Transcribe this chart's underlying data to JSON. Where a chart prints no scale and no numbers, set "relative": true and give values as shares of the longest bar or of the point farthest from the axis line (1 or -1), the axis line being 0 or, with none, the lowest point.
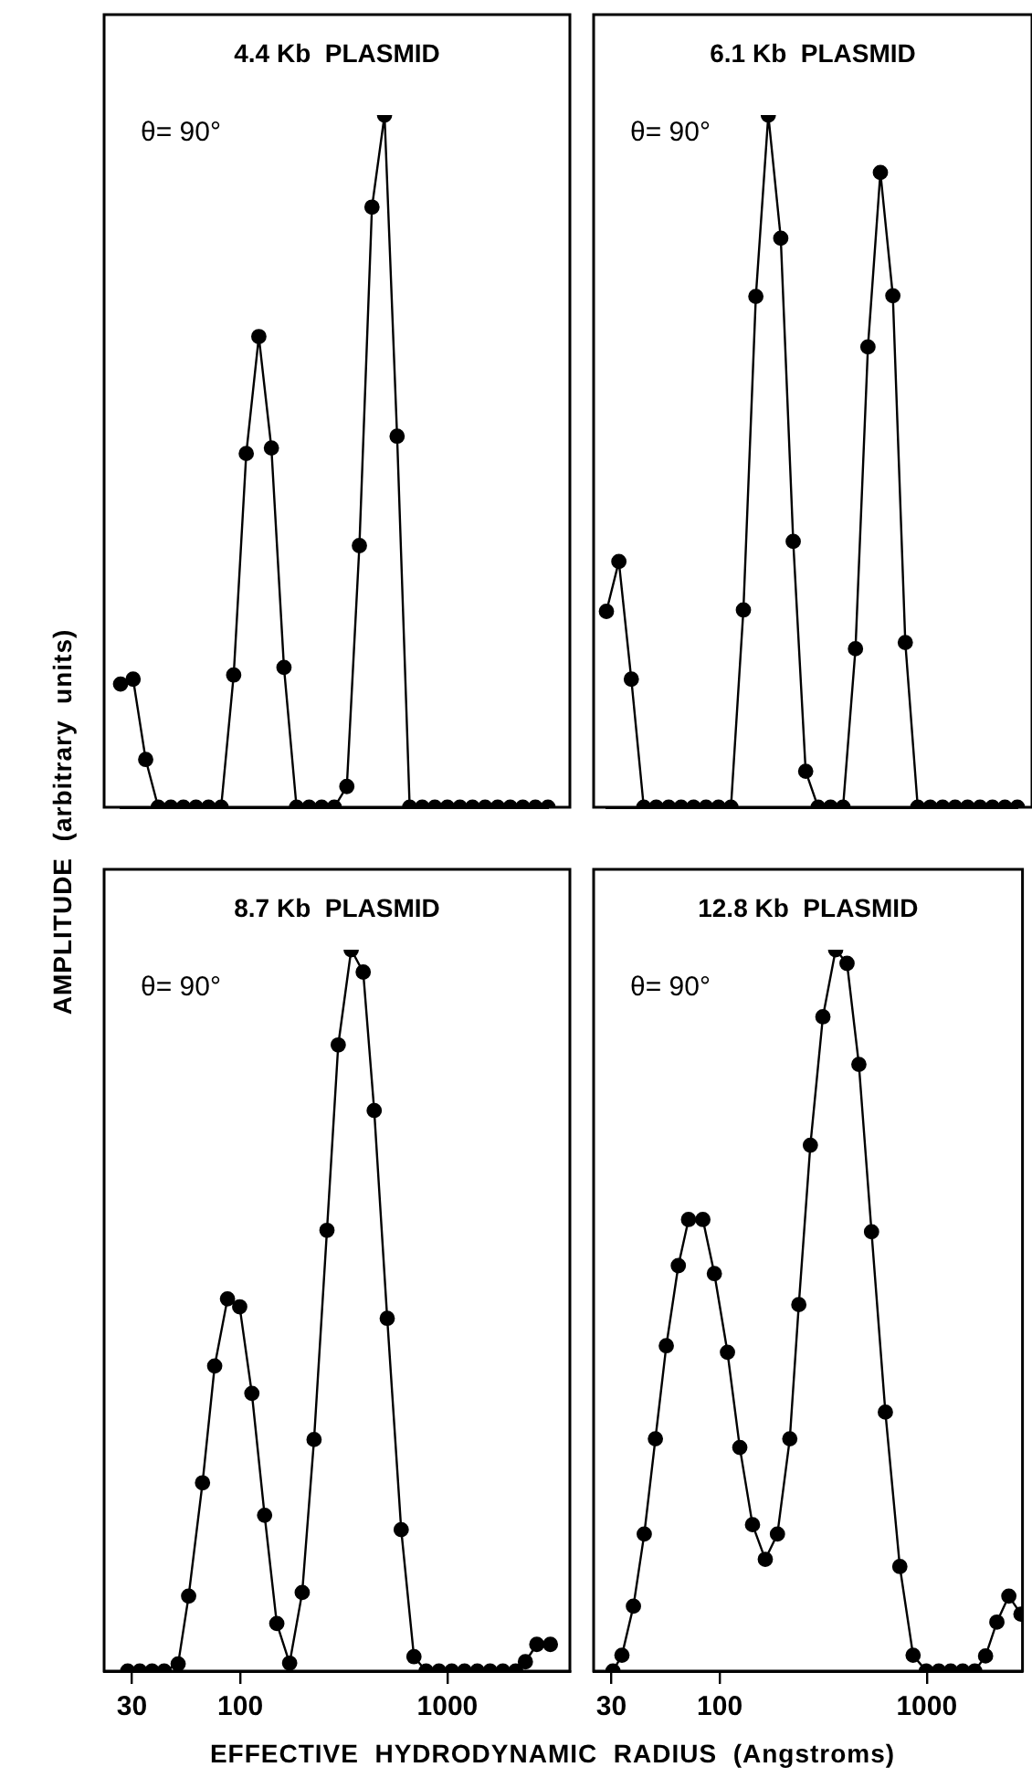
{
  "chart_data": [
    {
      "type": "line",
      "title": "4.4 Kb  PLASMID",
      "ylabel": "AMPLITUDE  (arbitrary  units)",
      "annotations": [
        "θ= 90°"
      ],
      "relative": true,
      "categories": [
        null,
        null,
        null,
        null,
        null,
        null,
        null,
        null,
        null,
        null,
        null,
        null,
        null,
        null,
        null,
        null,
        null,
        null,
        null,
        null,
        null,
        null,
        null,
        null,
        null,
        null,
        null,
        null,
        null,
        null,
        null,
        null,
        null,
        null,
        null
      ],
      "tick_labels": false,
      "marker": "circle",
      "line_style": "solid",
      "legend": false,
      "grid": false,
      "series": [
        {
          "color": "#000000",
          "values": [
            0.178,
            0.185,
            0.069,
            0,
            0,
            0,
            0,
            0,
            0,
            0.191,
            0.511,
            0.68,
            0.519,
            0.202,
            0,
            0,
            0,
            0,
            0.03,
            0.378,
            0.867,
            1,
            0.536,
            0,
            0,
            0,
            0,
            0,
            0,
            0,
            0,
            0,
            0,
            0,
            0
          ]
        }
      ]
    },
    {
      "type": "line",
      "title": "6.1 Kb  PLASMID",
      "annotations": [
        "θ= 90°"
      ],
      "relative": true,
      "categories": [
        null,
        null,
        null,
        null,
        null,
        null,
        null,
        null,
        null,
        null,
        null,
        null,
        null,
        null,
        null,
        null,
        null,
        null,
        null,
        null,
        null,
        null,
        null,
        null,
        null,
        null,
        null,
        null,
        null,
        null,
        null,
        null,
        null,
        null
      ],
      "tick_labels": false,
      "marker": "circle",
      "line_style": "solid",
      "legend": false,
      "grid": false,
      "series": [
        {
          "color": "#000000",
          "values": [
            0.283,
            0.355,
            0.185,
            0,
            0,
            0,
            0,
            0,
            0,
            0,
            0,
            0.285,
            0.738,
            1,
            0.822,
            0.384,
            0.052,
            0,
            0,
            0,
            0.229,
            0.665,
            0.917,
            0.739,
            0.238,
            0,
            0,
            0,
            0,
            0,
            0,
            0,
            0,
            0
          ]
        }
      ]
    },
    {
      "type": "line",
      "title": "8.7 Kb  PLASMID",
      "xlabel": "EFFECTIVE  HYDRODYNAMIC  RADIUS  (Angstroms)",
      "annotations": [
        "θ= 90°"
      ],
      "relative": true,
      "log": "x",
      "xlim": [
        22,
        3900
      ],
      "xticks": [
        30,
        100,
        1000
      ],
      "tick_labels": "x",
      "marker": "circle",
      "line_style": "solid",
      "legend": false,
      "grid": false,
      "series": [
        {
          "color": "#000000",
          "x": [
            28.6,
            32.7,
            37.5,
            42.9,
            50.1,
            56.3,
            65.7,
            75.2,
            86.7,
            99.3,
            113.7,
            131,
            150,
            173,
            199,
            227,
            262,
            297,
            343,
            392,
            443,
            512,
            598,
            689,
            789,
            910,
            1049,
            1209,
            1394,
            1607,
            1852,
            2135,
            2378,
            2700,
            3140
          ],
          "values": [
            0,
            0,
            0,
            0,
            0.01,
            0.104,
            0.261,
            0.423,
            0.516,
            0.505,
            0.385,
            0.216,
            0.066,
            0.011,
            0.109,
            0.321,
            0.611,
            0.868,
            1,
            0.969,
            0.777,
            0.489,
            0.196,
            0.02,
            0,
            0,
            0,
            0,
            0,
            0,
            0,
            0,
            0.013,
            0.037,
            0.037
          ]
        }
      ]
    },
    {
      "type": "line",
      "title": "12.8 Kb  PLASMID",
      "annotations": [
        "θ= 90°"
      ],
      "relative": true,
      "log": "x",
      "xlim": [
        24.6,
        2900
      ],
      "xticks": [
        30,
        100,
        1000
      ],
      "tick_labels": "x",
      "marker": "circle",
      "line_style": "solid",
      "legend": false,
      "grid": false,
      "series": [
        {
          "color": "#000000",
          "x": [
            30.5,
            33.7,
            38.3,
            43.2,
            48.9,
            55.2,
            63.1,
            70.7,
            82.9,
            94.2,
            109,
            125,
            144,
            166,
            190,
            218,
            241,
            274,
            315,
            363,
            412,
            470,
            541,
            631,
            741,
            859,
            995,
            1143,
            1305,
            1492,
            1705,
            1923,
            2181,
            2491,
            2850
          ],
          "values": [
            0,
            0.022,
            0.09,
            0.19,
            0.322,
            0.451,
            0.562,
            0.626,
            0.626,
            0.551,
            0.442,
            0.31,
            0.203,
            0.155,
            0.19,
            0.322,
            0.508,
            0.729,
            0.907,
            1,
            0.981,
            0.841,
            0.609,
            0.359,
            0.145,
            0.022,
            0,
            0,
            0,
            0,
            0,
            0.021,
            0.068,
            0.104,
            0.079
          ]
        }
      ]
    }
  ]
}
